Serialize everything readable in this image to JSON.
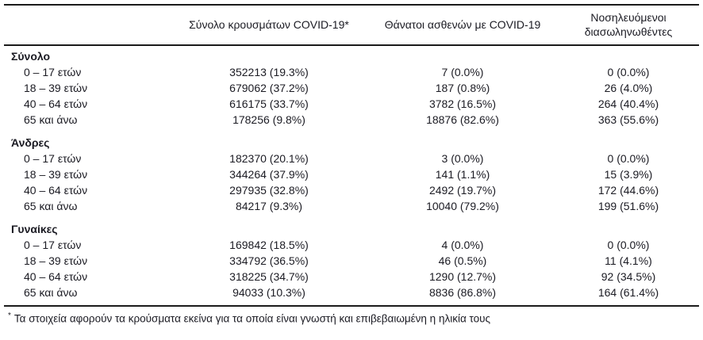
{
  "table": {
    "header": {
      "col_cases": "Σύνολο κρουσμάτων COVID-19*",
      "col_deaths": "Θάνατοι ασθενών με COVID-19",
      "col_intubated_line1": "Νοσηλευόμενοι",
      "col_intubated_line2": "διασωληνωθέντες"
    },
    "groups": [
      {
        "label": "Σύνολο",
        "rows": [
          {
            "label": "0 – 17 ετών",
            "cases": "352213 (19.3%)",
            "deaths": "7 (0.0%)",
            "intubated": "0 (0.0%)"
          },
          {
            "label": "18 – 39 ετών",
            "cases": "679062 (37.2%)",
            "deaths": "187 (0.8%)",
            "intubated": "26 (4.0%)"
          },
          {
            "label": "40 – 64 ετών",
            "cases": "616175 (33.7%)",
            "deaths": "3782 (16.5%)",
            "intubated": "264 (40.4%)"
          },
          {
            "label": "65 και άνω",
            "cases": "178256 (9.8%)",
            "deaths": "18876 (82.6%)",
            "intubated": "363 (55.6%)"
          }
        ]
      },
      {
        "label": "Άνδρες",
        "rows": [
          {
            "label": "0 – 17 ετών",
            "cases": "182370 (20.1%)",
            "deaths": "3 (0.0%)",
            "intubated": "0 (0.0%)"
          },
          {
            "label": "18 – 39 ετών",
            "cases": "344264 (37.9%)",
            "deaths": "141 (1.1%)",
            "intubated": "15 (3.9%)"
          },
          {
            "label": "40 – 64 ετών",
            "cases": "297935 (32.8%)",
            "deaths": "2492 (19.7%)",
            "intubated": "172 (44.6%)"
          },
          {
            "label": "65 και άνω",
            "cases": "84217 (9.3%)",
            "deaths": "10040 (79.2%)",
            "intubated": "199 (51.6%)"
          }
        ]
      },
      {
        "label": "Γυναίκες",
        "rows": [
          {
            "label": "0 – 17 ετών",
            "cases": "169842 (18.5%)",
            "deaths": "4 (0.0%)",
            "intubated": "0 (0.0%)"
          },
          {
            "label": "18 – 39 ετών",
            "cases": "334792 (36.5%)",
            "deaths": "46 (0.5%)",
            "intubated": "11 (4.1%)"
          },
          {
            "label": "40 – 64 ετών",
            "cases": "318225 (34.7%)",
            "deaths": "1290 (12.7%)",
            "intubated": "92 (34.5%)"
          },
          {
            "label": "65 και άνω",
            "cases": "94033 (10.3%)",
            "deaths": "8836 (86.8%)",
            "intubated": "164 (61.4%)"
          }
        ]
      }
    ]
  },
  "footnote": {
    "marker": "*",
    "text": "Τα στοιχεία αφορούν τα κρούσματα εκείνα για τα οποία είναι γνωστή και επιβεβαιωμένη η ηλικία τους"
  },
  "colors": {
    "text": "#1b1b23",
    "rule": "#1b1b1b",
    "background": "#ffffff"
  }
}
